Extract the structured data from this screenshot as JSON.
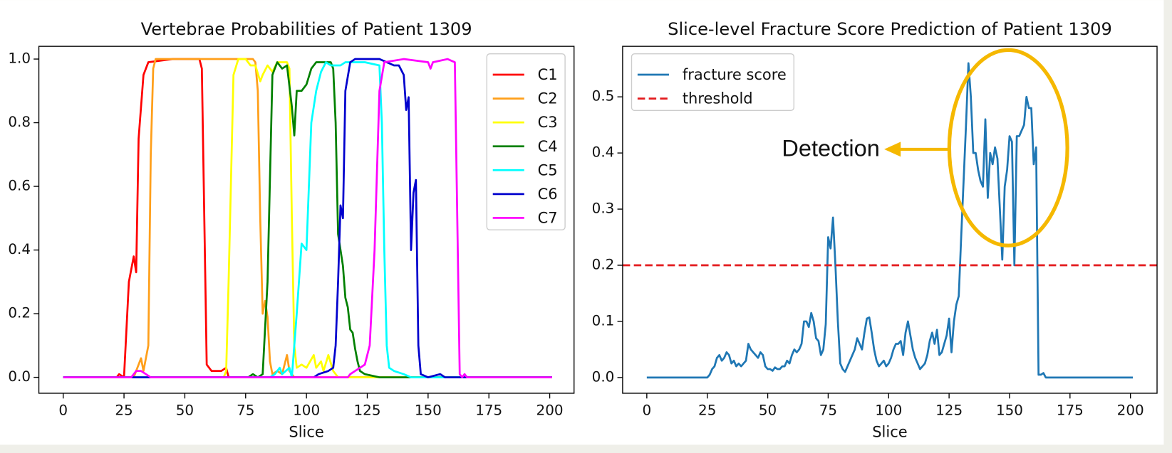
{
  "chart_data": [
    {
      "type": "line",
      "title": "Vertebrae Probabilities of Patient 1309",
      "xlabel": "Slice",
      "xlim": [
        -10,
        210
      ],
      "ylim": [
        -0.05,
        1.04
      ],
      "xticks": [
        0,
        25,
        50,
        75,
        100,
        125,
        150,
        175,
        200
      ],
      "yticks": [
        {
          "value": 0,
          "label": "0.0"
        },
        0.2,
        0.4,
        0.6,
        0.8,
        {
          "value": 1,
          "label": "1.0"
        }
      ],
      "grid": false,
      "legend_loc": "upper right",
      "series": [
        {
          "name": "C1",
          "color": "#ff0000",
          "x": [
            0,
            22,
            23,
            25,
            27,
            29,
            30,
            31,
            33,
            35,
            45,
            56,
            57,
            59,
            61,
            63,
            65,
            67,
            68,
            201
          ],
          "values": [
            0,
            0,
            0.01,
            0,
            0.3,
            0.38,
            0.33,
            0.75,
            0.95,
            0.99,
            1.0,
            1.0,
            0.97,
            0.04,
            0.02,
            0.02,
            0.02,
            0.03,
            0,
            0
          ]
        },
        {
          "name": "C2",
          "color": "#ff9f1a",
          "x": [
            0,
            29,
            30,
            32,
            33,
            35,
            36,
            37,
            38,
            60,
            78,
            79,
            80,
            81,
            82,
            83,
            84,
            85,
            86,
            88,
            90,
            92,
            93,
            95,
            201
          ],
          "values": [
            0,
            0,
            0.02,
            0.06,
            0.02,
            0.1,
            0.7,
            0.97,
            1.0,
            1.0,
            1.0,
            0.99,
            0.9,
            0.5,
            0.2,
            0.24,
            0.19,
            0.05,
            0.01,
            0.02,
            0.01,
            0.07,
            0.02,
            0,
            0
          ]
        },
        {
          "name": "C3",
          "color": "#ffff00",
          "x": [
            0,
            66,
            67,
            68,
            70,
            72,
            75,
            77,
            79,
            81,
            82,
            84,
            86,
            88,
            92,
            93,
            94,
            95,
            96,
            98,
            100,
            103,
            104,
            106,
            107,
            109,
            111,
            113,
            201
          ],
          "values": [
            0,
            0,
            0.02,
            0.3,
            0.95,
            1.0,
            1.0,
            0.98,
            0.98,
            0.93,
            0.95,
            0.98,
            0.96,
            0.99,
            0.99,
            0.97,
            0.5,
            0.1,
            0.03,
            0.04,
            0.03,
            0.07,
            0.03,
            0.05,
            0.02,
            0.07,
            0.02,
            0,
            0
          ]
        },
        {
          "name": "C4",
          "color": "#008000",
          "x": [
            0,
            76,
            78,
            80,
            82,
            84,
            86,
            88,
            90,
            92,
            94,
            95,
            96,
            98,
            100,
            102,
            104,
            110,
            111,
            112,
            113,
            115,
            116,
            117,
            118,
            119,
            120,
            121,
            122,
            124,
            130,
            201
          ],
          "values": [
            0,
            0,
            0.01,
            0,
            0.01,
            0.3,
            0.95,
            0.99,
            0.97,
            0.98,
            0.85,
            0.76,
            0.9,
            0.9,
            0.92,
            0.97,
            0.99,
            0.99,
            0.97,
            0.8,
            0.45,
            0.35,
            0.25,
            0.22,
            0.15,
            0.14,
            0.09,
            0.05,
            0.02,
            0.01,
            0,
            0
          ]
        },
        {
          "name": "C5",
          "color": "#00ffff",
          "x": [
            0,
            85,
            87,
            89,
            90,
            93,
            94,
            96,
            98,
            99,
            100,
            101,
            102,
            104,
            106,
            108,
            110,
            114,
            116,
            120,
            124,
            130,
            131,
            132,
            133,
            134,
            136,
            140,
            143,
            201
          ],
          "values": [
            0,
            0,
            0.01,
            0.03,
            0.01,
            0.03,
            0,
            0.2,
            0.42,
            0.41,
            0.4,
            0.6,
            0.8,
            0.9,
            0.96,
            0.99,
            0.98,
            0.98,
            0.99,
            0.99,
            0.99,
            0.98,
            0.8,
            0.4,
            0.1,
            0.03,
            0.02,
            0.01,
            0,
            0
          ]
        },
        {
          "name": "C6",
          "color": "#0000cd",
          "x": [
            0,
            103,
            105,
            109,
            111,
            112,
            113,
            114,
            115,
            116,
            118,
            120,
            130,
            136,
            138,
            140,
            141,
            142,
            143,
            144,
            145,
            146,
            147,
            150,
            155,
            157,
            201
          ],
          "values": [
            0,
            0,
            0.01,
            0.02,
            0.03,
            0.1,
            0.3,
            0.54,
            0.5,
            0.9,
            0.99,
            1.0,
            1.0,
            0.98,
            0.98,
            0.95,
            0.84,
            0.88,
            0.4,
            0.58,
            0.62,
            0.1,
            0.01,
            0,
            0.01,
            0,
            0
          ]
        },
        {
          "name": "C7",
          "color": "#ff00ff",
          "x": [
            0,
            28,
            30,
            32,
            34,
            36,
            117,
            118,
            120,
            122,
            124,
            126,
            128,
            130,
            132,
            140,
            150,
            151,
            152,
            158,
            161,
            162,
            163,
            164,
            165,
            166,
            201
          ],
          "values": [
            0,
            0,
            0.02,
            0.02,
            0.01,
            0,
            0,
            0.01,
            0.02,
            0.03,
            0.04,
            0.1,
            0.4,
            0.9,
            0.99,
            1.0,
            0.99,
            0.97,
            0.99,
            1.0,
            0.99,
            0.5,
            0.01,
            0,
            0.01,
            0,
            0
          ]
        }
      ]
    },
    {
      "type": "line",
      "title": "Slice-level Fracture Score Prediction of Patient 1309",
      "xlabel": "Slice",
      "xlim": [
        -10,
        211
      ],
      "ylim": [
        -0.028,
        0.59
      ],
      "xticks": [
        0,
        25,
        50,
        75,
        100,
        125,
        150,
        175,
        200
      ],
      "yticks": [
        {
          "value": 0,
          "label": "0.0"
        },
        0.1,
        0.2,
        0.3,
        0.4,
        0.5
      ],
      "grid": false,
      "legend_loc": "upper left",
      "threshold": {
        "name": "threshold",
        "value": 0.2,
        "color": "#e31a1c"
      },
      "annotation": {
        "text": "Detection",
        "color": "#f5b800"
      },
      "series": [
        {
          "name": "fracture score",
          "color": "#1f77b4",
          "x": [
            0,
            25,
            26,
            27,
            28,
            29,
            30,
            31,
            32,
            33,
            34,
            35,
            36,
            37,
            38,
            39,
            40,
            41,
            42,
            43,
            44,
            45,
            46,
            47,
            48,
            49,
            50,
            51,
            52,
            53,
            54,
            55,
            56,
            57,
            58,
            59,
            60,
            61,
            62,
            63,
            64,
            65,
            66,
            67,
            68,
            69,
            70,
            71,
            72,
            73,
            74,
            75,
            76,
            77,
            78,
            79,
            80,
            81,
            82,
            83,
            84,
            85,
            86,
            87,
            88,
            89,
            90,
            91,
            92,
            93,
            94,
            95,
            96,
            97,
            98,
            99,
            100,
            101,
            102,
            103,
            104,
            105,
            106,
            107,
            108,
            109,
            110,
            111,
            112,
            113,
            114,
            115,
            116,
            117,
            118,
            119,
            120,
            121,
            122,
            123,
            124,
            125,
            126,
            127,
            128,
            129,
            130,
            131,
            132,
            133,
            134,
            135,
            136,
            137,
            138,
            139,
            140,
            141,
            142,
            143,
            144,
            145,
            146,
            147,
            148,
            149,
            150,
            151,
            152,
            153,
            154,
            155,
            156,
            157,
            158,
            159,
            160,
            161,
            162,
            163,
            164,
            165,
            201
          ],
          "values": [
            0,
            0,
            0.005,
            0.015,
            0.02,
            0.035,
            0.04,
            0.03,
            0.035,
            0.045,
            0.04,
            0.025,
            0.03,
            0.02,
            0.025,
            0.02,
            0.025,
            0.03,
            0.06,
            0.05,
            0.045,
            0.04,
            0.035,
            0.045,
            0.04,
            0.02,
            0.015,
            0.015,
            0.012,
            0.018,
            0.015,
            0.015,
            0.02,
            0.02,
            0.03,
            0.025,
            0.04,
            0.05,
            0.045,
            0.05,
            0.06,
            0.1,
            0.1,
            0.09,
            0.115,
            0.1,
            0.07,
            0.065,
            0.04,
            0.05,
            0.095,
            0.25,
            0.23,
            0.285,
            0.2,
            0.1,
            0.025,
            0.015,
            0.01,
            0.02,
            0.03,
            0.04,
            0.05,
            0.07,
            0.06,
            0.05,
            0.08,
            0.105,
            0.107,
            0.08,
            0.05,
            0.03,
            0.02,
            0.025,
            0.03,
            0.02,
            0.025,
            0.035,
            0.05,
            0.06,
            0.06,
            0.065,
            0.04,
            0.08,
            0.1,
            0.075,
            0.05,
            0.035,
            0.025,
            0.015,
            0.02,
            0.025,
            0.04,
            0.065,
            0.08,
            0.06,
            0.085,
            0.04,
            0.045,
            0.06,
            0.075,
            0.105,
            0.045,
            0.1,
            0.13,
            0.145,
            0.25,
            0.35,
            0.45,
            0.56,
            0.5,
            0.4,
            0.4,
            0.37,
            0.35,
            0.34,
            0.46,
            0.32,
            0.4,
            0.38,
            0.41,
            0.39,
            0.3,
            0.21,
            0.34,
            0.37,
            0.43,
            0.42,
            0.2,
            0.43,
            0.43,
            0.44,
            0.45,
            0.5,
            0.48,
            0.48,
            0.38,
            0.41,
            0.005,
            0.005,
            0.008,
            0,
            0
          ]
        }
      ]
    }
  ]
}
